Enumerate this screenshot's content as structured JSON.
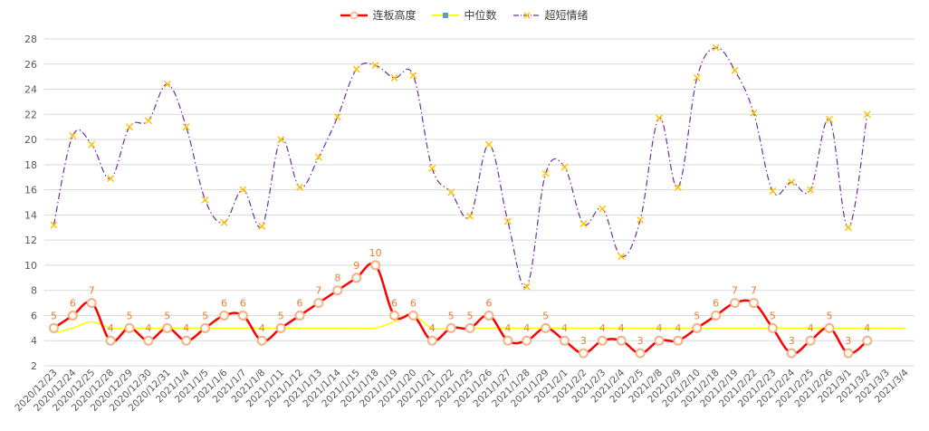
{
  "chart_data": {
    "type": "line",
    "categories": [
      "2020/12/23",
      "2020/12/24",
      "2020/12/25",
      "2020/12/28",
      "2020/12/29",
      "2020/12/30",
      "2020/12/31",
      "2021/1/4",
      "2021/1/5",
      "2021/1/6",
      "2021/1/7",
      "2021/1/8",
      "2021/1/11",
      "2021/1/12",
      "2021/1/13",
      "2021/1/14",
      "2021/1/15",
      "2021/1/18",
      "2021/1/19",
      "2021/1/20",
      "2021/1/21",
      "2021/1/22",
      "2021/1/25",
      "2021/1/26",
      "2021/1/27",
      "2021/1/28",
      "2021/1/29",
      "2021/2/1",
      "2021/2/2",
      "2021/2/3",
      "2021/2/4",
      "2021/2/5",
      "2021/2/8",
      "2021/2/9",
      "2021/2/10",
      "2021/2/18",
      "2021/2/19",
      "2021/2/22",
      "2021/2/23",
      "2021/2/24",
      "2021/2/25",
      "2021/2/26",
      "2021/3/1",
      "2021/3/2",
      "2021/3/3",
      "2021/3/4"
    ],
    "series": [
      {
        "name": "连板高度",
        "color": "#FF0000",
        "marker_color": "#F4B183",
        "values": [
          5,
          6,
          7,
          4,
          5,
          4,
          5,
          4,
          5,
          6,
          6,
          4,
          5,
          6,
          7,
          8,
          9,
          10,
          6,
          6,
          4,
          5,
          5,
          6,
          4,
          4,
          5,
          4,
          3,
          4,
          4,
          3,
          4,
          4,
          5,
          6,
          7,
          7,
          5,
          3,
          4,
          5,
          3,
          4,
          null,
          null
        ]
      },
      {
        "name": "中位数",
        "color": "#FFFF00",
        "values": [
          4.6,
          5,
          5.5,
          5,
          5,
          5,
          5,
          5,
          5,
          5,
          5,
          5,
          5,
          5,
          5,
          5,
          5,
          5,
          5.5,
          6,
          5,
          5,
          5,
          5,
          5,
          5,
          5,
          5,
          5,
          5,
          5,
          5,
          5,
          5,
          5,
          5,
          5,
          5,
          5,
          5,
          5,
          5,
          5,
          5,
          5,
          5
        ]
      },
      {
        "name": "超短情绪",
        "color": "#7030A0",
        "marker_color": "#FFC000",
        "values": [
          13.2,
          20.3,
          19.6,
          16.9,
          21,
          21.5,
          24.4,
          21,
          15.2,
          13.4,
          16,
          13.1,
          20,
          16.2,
          18.6,
          21.8,
          25.6,
          25.9,
          24.9,
          25.1,
          17.7,
          15.8,
          13.9,
          19.6,
          13.5,
          8.3,
          17.3,
          17.8,
          13.3,
          14.5,
          10.7,
          13.6,
          21.7,
          16.2,
          24.9,
          27.3,
          25.5,
          22.1,
          15.9,
          16.6,
          16,
          21.6,
          13,
          22,
          null,
          null
        ]
      }
    ],
    "ylim": [
      2,
      28
    ],
    "yticks": [
      "2",
      "4",
      "6",
      "8",
      "10",
      "12",
      "14",
      "16",
      "18",
      "20",
      "22",
      "24",
      "26",
      "28"
    ],
    "grid": true,
    "legend_position": "top"
  }
}
